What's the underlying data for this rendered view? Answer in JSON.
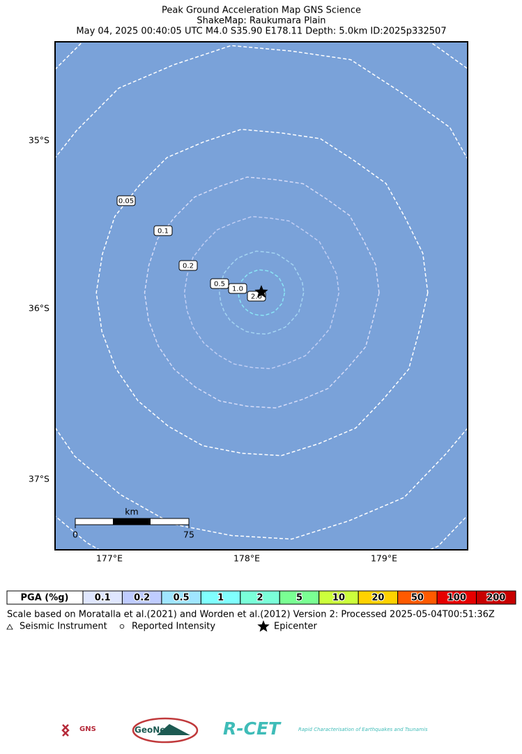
{
  "header": {
    "title_lines": [
      "Peak Ground Acceleration Map GNS Science",
      "ShakeMap: Raukumara Plain",
      "May 04, 2025 00:40:05 UTC M4.0 S35.90 E178.11 Depth: 5.0km ID:2025p332507"
    ]
  },
  "map": {
    "lat_labels": [
      "35°S",
      "36°S",
      "37°S"
    ],
    "lon_labels": [
      "177°E",
      "178°E",
      "179°E"
    ],
    "contour_labels": [
      "0.05",
      "0.1",
      "0.2",
      "0.5",
      "1.0",
      "2.0"
    ],
    "scale_bar": {
      "unit": "km",
      "start": "0",
      "end": "75"
    }
  },
  "legend": {
    "header": "PGA (%g)",
    "bins": [
      {
        "label": "0.1",
        "color": "#dfe6fe"
      },
      {
        "label": "0.2",
        "color": "#bfccff"
      },
      {
        "label": "0.5",
        "color": "#a0e6ff"
      },
      {
        "label": "1",
        "color": "#80ffff"
      },
      {
        "label": "2",
        "color": "#7affd9"
      },
      {
        "label": "5",
        "color": "#7aff93"
      },
      {
        "label": "10",
        "color": "#ccff3c"
      },
      {
        "label": "20",
        "color": "#ffd200"
      },
      {
        "label": "50",
        "color": "#ff5a00"
      },
      {
        "label": "100",
        "color": "#e60000"
      },
      {
        "label": "200",
        "color": "#c80000"
      }
    ]
  },
  "footer": {
    "scale_note": "Scale based on Moratalla et al.(2021) and Worden et al.(2012)   Version 2: Processed 2025-05-04T00:51:36Z",
    "symbols": [
      "Seismic Instrument",
      "Reported Intensity",
      "Epicenter"
    ]
  },
  "logos": {
    "gns": "GNS",
    "geonet": "GeoNet",
    "rcet": "R-CET",
    "rcet_tagline": "Rapid Characterisation of Earthquakes and Tsunamis"
  }
}
